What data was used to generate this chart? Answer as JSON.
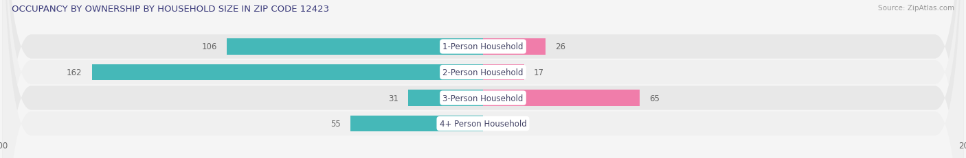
{
  "title": "OCCUPANCY BY OWNERSHIP BY HOUSEHOLD SIZE IN ZIP CODE 12423",
  "source": "Source: ZipAtlas.com",
  "categories": [
    "1-Person Household",
    "2-Person Household",
    "3-Person Household",
    "4+ Person Household"
  ],
  "owner_values": [
    106,
    162,
    31,
    55
  ],
  "renter_values": [
    26,
    17,
    65,
    0
  ],
  "owner_color": "#45B8B8",
  "renter_color": "#F07DAA",
  "owner_color_light": "#7DD4D4",
  "renter_color_light": "#F5A8C8",
  "axis_max": 200,
  "row_bg_light": "#f0f0f0",
  "row_bg_dark": "#e8e8e8",
  "fig_bg": "#f5f5f5",
  "title_color": "#3a3a7a",
  "label_color": "#444466",
  "value_color": "#666666",
  "source_color": "#999999",
  "title_fontsize": 9.5,
  "label_fontsize": 8.5,
  "value_fontsize": 8.5,
  "tick_fontsize": 8.5,
  "legend_fontsize": 8.5
}
